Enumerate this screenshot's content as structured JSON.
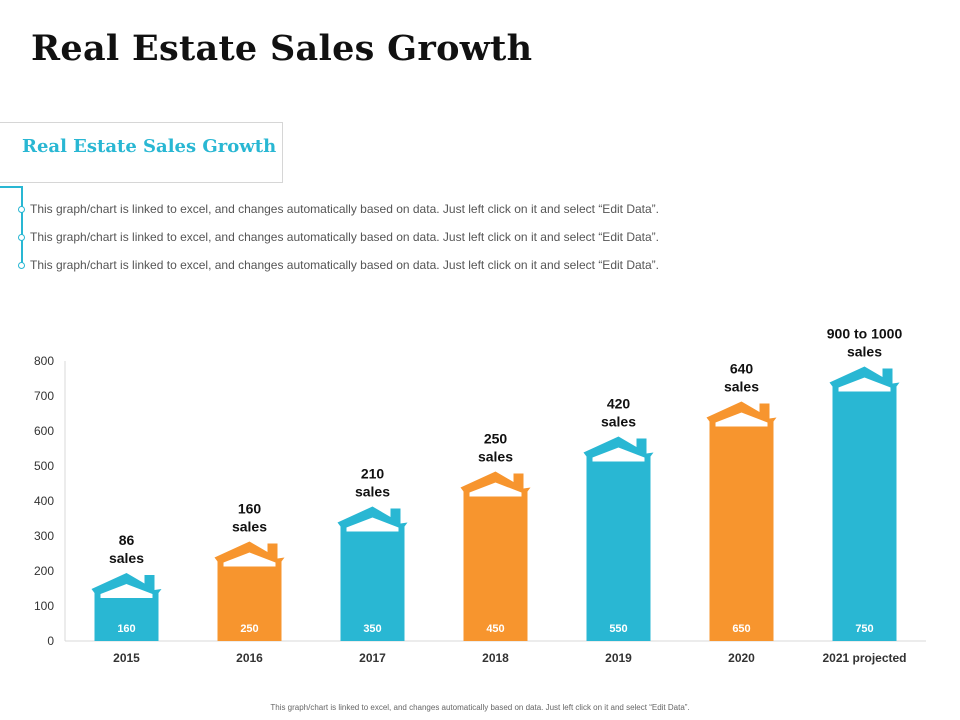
{
  "title": "Real Estate Sales Growth",
  "subtitle": "Real Estate Sales Growth",
  "bullets": [
    "This graph/chart is linked to excel, and changes automatically based on data. Just left click on it and select “Edit Data”.",
    "This graph/chart is linked to excel, and changes automatically based on data. Just left click on it and select “Edit Data”.",
    "This graph/chart is linked to excel, and changes automatically based on data. Just left click on it and select “Edit Data”."
  ],
  "footer": "This graph/chart is linked to excel, and changes automatically based on data. Just left click on it and select “Edit Data”.",
  "colors": {
    "blue": "#29b7d3",
    "orange": "#f7952e",
    "white": "#ffffff"
  },
  "chart_data": {
    "type": "bar",
    "categories": [
      "2015",
      "2016",
      "2017",
      "2018",
      "2019",
      "2020",
      "2021 projected"
    ],
    "values": [
      160,
      250,
      350,
      450,
      550,
      650,
      750
    ],
    "value_labels": [
      "160",
      "250",
      "350",
      "450",
      "550",
      "650",
      "750"
    ],
    "bar_labels": [
      [
        "86",
        "sales"
      ],
      [
        "160",
        "sales"
      ],
      [
        "210",
        "sales"
      ],
      [
        "250",
        "sales"
      ],
      [
        "420",
        "sales"
      ],
      [
        "640",
        "sales"
      ],
      [
        "900 to 1000",
        "sales"
      ]
    ],
    "bar_colors": [
      "blue",
      "orange",
      "blue",
      "orange",
      "blue",
      "orange",
      "blue"
    ],
    "yticks": [
      0,
      100,
      200,
      300,
      400,
      500,
      600,
      700,
      800
    ],
    "ylim": [
      0,
      800
    ],
    "bar_icon": "house-roof-icon",
    "title": "",
    "xlabel": "",
    "ylabel": ""
  }
}
